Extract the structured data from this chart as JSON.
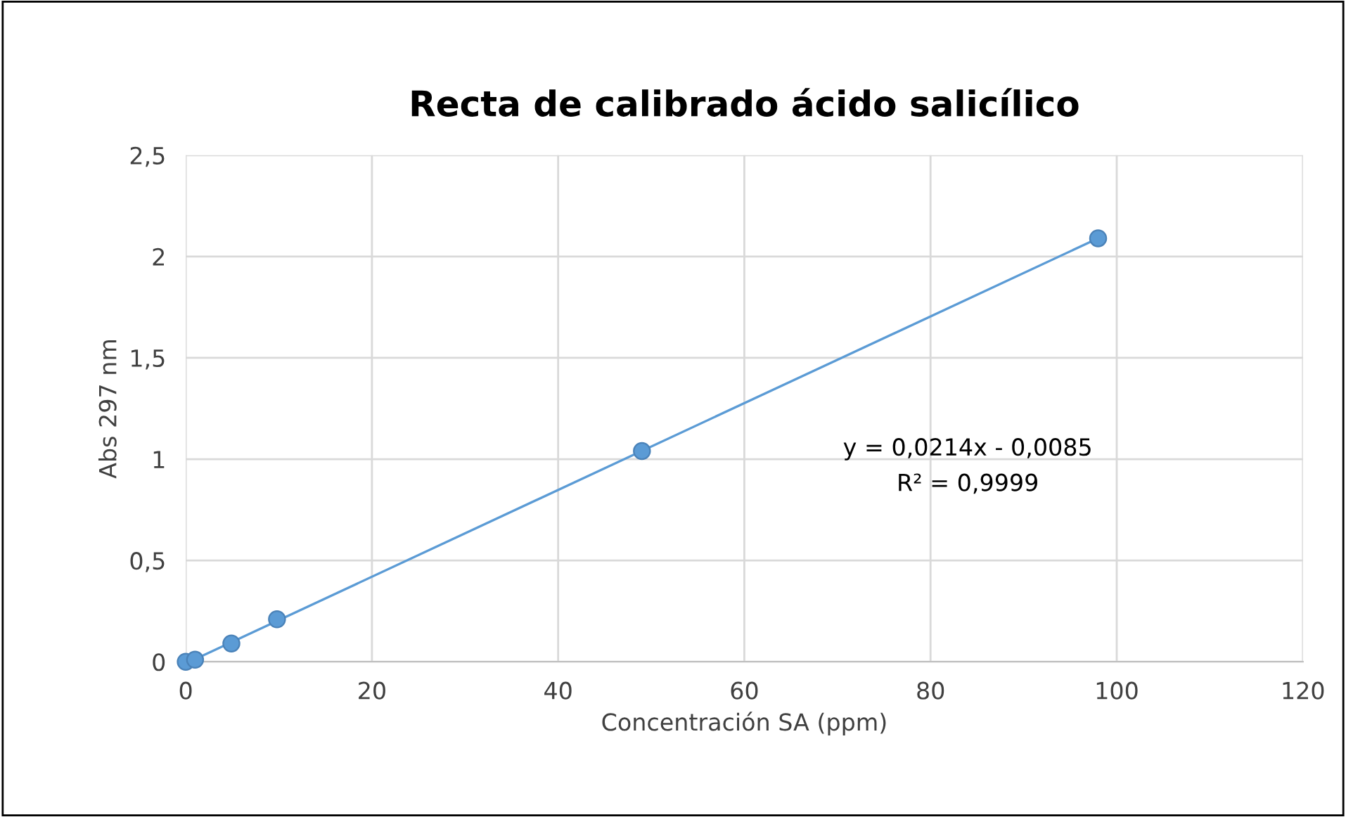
{
  "chart_data": {
    "type": "scatter",
    "title": "Recta de calibrado ácido salicílico",
    "xlabel": "Concentración SA (ppm)",
    "ylabel": "Abs 297 nm",
    "series": [
      {
        "color": "#5b9bd5",
        "marker": "circle",
        "x": [
          0,
          1,
          4.9,
          9.8,
          49,
          98
        ],
        "values": [
          0,
          0.01,
          0.09,
          0.21,
          1.04,
          2.09
        ]
      },
      {
        "type": "line",
        "marker": "none",
        "color": "#5b9bd5",
        "x": [
          0.4,
          98
        ],
        "values": [
          0,
          2.09
        ]
      }
    ],
    "annotations": [
      "y = 0,0214x - 0,0085",
      "R² = 0,9999"
    ],
    "xlim": [
      0,
      120
    ],
    "ylim": [
      0,
      2.5
    ],
    "xticks": [
      0,
      20,
      40,
      60,
      80,
      100,
      120
    ],
    "yticks": [
      0,
      {
        "value": 0.5,
        "label": "0,5"
      },
      1,
      {
        "value": 1.5,
        "label": "1,5"
      },
      2,
      {
        "value": 2.5,
        "label": "2,5"
      }
    ],
    "grid": true
  }
}
